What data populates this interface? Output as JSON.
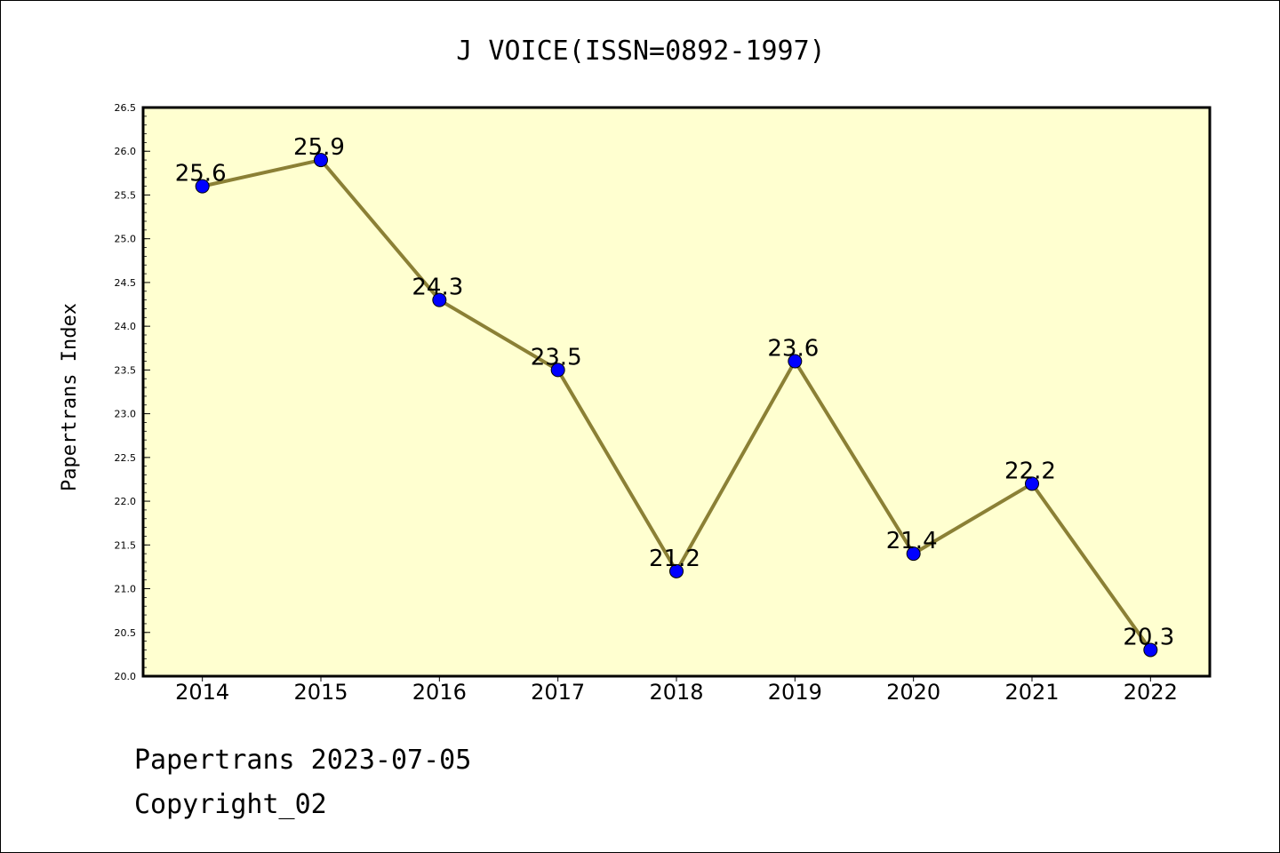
{
  "chart_data": {
    "type": "line",
    "title": "J VOICE(ISSN=0892-1997)",
    "ylabel": "Papertrans Index",
    "xlabel": "",
    "categories": [
      "2014",
      "2015",
      "2016",
      "2017",
      "2018",
      "2019",
      "2020",
      "2021",
      "2022"
    ],
    "series": [
      {
        "values": [
          25.6,
          25.9,
          24.3,
          23.5,
          21.2,
          23.6,
          21.4,
          22.2,
          20.3
        ]
      }
    ],
    "data_labels": [
      "25.6",
      "25.9",
      "24.3",
      "23.5",
      "21.2",
      "23.6",
      "21.4",
      "22.2",
      "20.3"
    ],
    "ylim": [
      20.0,
      26.5
    ],
    "yticks": [
      "20.0",
      "20.5",
      "21.0",
      "21.5",
      "22.0",
      "22.5",
      "23.0",
      "23.5",
      "24.0",
      "24.5",
      "25.0",
      "25.5",
      "26.0",
      "26.5"
    ],
    "grid": false,
    "colors": {
      "plot_background": "#ffffd0",
      "line": "#8b8035",
      "marker": "#0000ff"
    }
  },
  "footer": {
    "line1": "Papertrans 2023-07-05",
    "line2": "Copyright_02"
  }
}
